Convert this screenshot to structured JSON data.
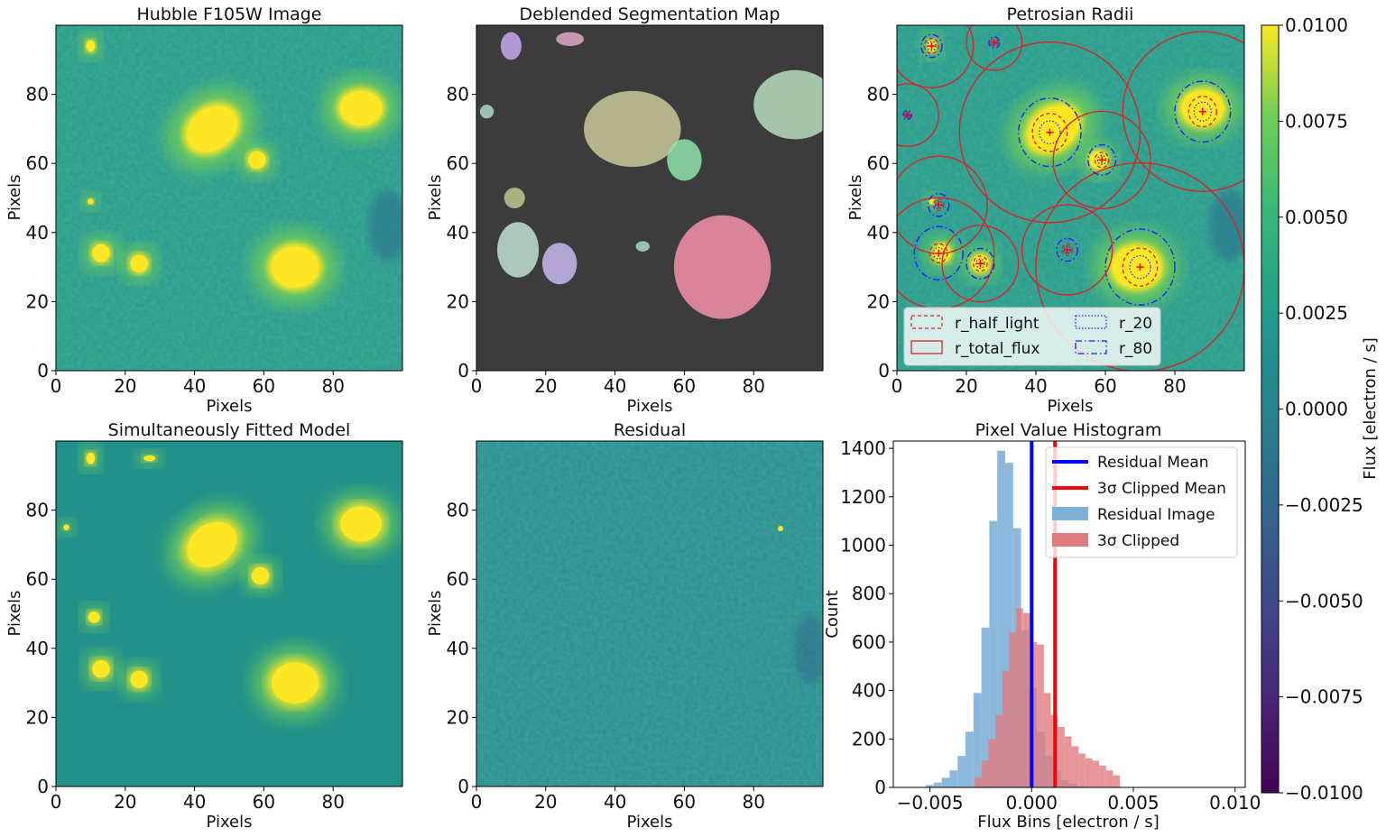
{
  "colors": {
    "viridis_dark": "#440154",
    "viridis_mid": "#21918c",
    "viridis_yellow": "#fde725",
    "seg_background": "#3c3c3c",
    "contour_red": "#d62728",
    "contour_blue": "#1f1fff",
    "hist_blue": "#7fb0d8",
    "hist_red": "#e07b80",
    "line_blue": "#0000ff",
    "line_red": "#ff0000"
  },
  "chart_data": [
    {
      "id": "hubble",
      "type": "heatmap",
      "title": "Hubble F105W Image",
      "xlabel": "Pixels",
      "ylabel": "Pixels",
      "xlim": [
        0,
        100
      ],
      "ylim": [
        0,
        100
      ],
      "xticks": [
        0,
        20,
        40,
        60,
        80
      ],
      "yticks": [
        0,
        20,
        40,
        60,
        80
      ],
      "sources": [
        {
          "x": 45,
          "y": 70,
          "rx": 9,
          "ry": 7,
          "angle": -35
        },
        {
          "x": 88,
          "y": 76,
          "rx": 7,
          "ry": 6,
          "angle": 0
        },
        {
          "x": 69,
          "y": 30,
          "rx": 8,
          "ry": 7,
          "angle": 0
        },
        {
          "x": 58,
          "y": 61,
          "rx": 3,
          "ry": 3,
          "angle": 0
        },
        {
          "x": 13,
          "y": 34,
          "rx": 3,
          "ry": 3,
          "angle": 0
        },
        {
          "x": 24,
          "y": 31,
          "rx": 3,
          "ry": 3,
          "angle": 0
        },
        {
          "x": 10,
          "y": 94,
          "rx": 1.5,
          "ry": 2,
          "angle": 0
        },
        {
          "x": 10,
          "y": 49,
          "rx": 1,
          "ry": 1,
          "angle": 0
        }
      ]
    },
    {
      "id": "segmap",
      "type": "heatmap",
      "title": "Deblended Segmentation Map",
      "xlabel": "Pixels",
      "ylabel": "Pixels",
      "xlim": [
        0,
        100
      ],
      "ylim": [
        0,
        100
      ],
      "xticks": [
        0,
        20,
        40,
        60,
        80
      ],
      "yticks": [
        0,
        20,
        40,
        60,
        80
      ],
      "segments": [
        {
          "x": 45,
          "y": 70,
          "rx": 14,
          "ry": 11,
          "color": "#c8c89a"
        },
        {
          "x": 71,
          "y": 30,
          "rx": 14,
          "ry": 15,
          "color": "#f590a8"
        },
        {
          "x": 92,
          "y": 77,
          "rx": 12,
          "ry": 10,
          "color": "#b8dcc0"
        },
        {
          "x": 60,
          "y": 61,
          "rx": 5,
          "ry": 6,
          "color": "#8ee0a8"
        },
        {
          "x": 12,
          "y": 35,
          "rx": 6,
          "ry": 8,
          "color": "#c0e0d0"
        },
        {
          "x": 24,
          "y": 31,
          "rx": 5,
          "ry": 6,
          "color": "#c8b8f0"
        },
        {
          "x": 10,
          "y": 94,
          "rx": 3,
          "ry": 4,
          "color": "#c8a8f0"
        },
        {
          "x": 27,
          "y": 96,
          "rx": 4,
          "ry": 2,
          "color": "#e0a8c8"
        },
        {
          "x": 11,
          "y": 50,
          "rx": 3,
          "ry": 3,
          "color": "#b8c890"
        },
        {
          "x": 3,
          "y": 75,
          "rx": 2,
          "ry": 2,
          "color": "#a8d8c8"
        },
        {
          "x": 48,
          "y": 36,
          "rx": 2,
          "ry": 1.5,
          "color": "#a8d8c8"
        }
      ]
    },
    {
      "id": "petrosian",
      "type": "heatmap",
      "title": "Petrosian Radii",
      "xlabel": "Pixels",
      "ylabel": "Pixels",
      "xlim": [
        0,
        100
      ],
      "ylim": [
        0,
        100
      ],
      "xticks": [
        0,
        20,
        40,
        60,
        80
      ],
      "yticks": [
        0,
        20,
        40,
        60,
        80
      ],
      "legend": {
        "loc": "lower-left",
        "ncol": 2,
        "entries": [
          {
            "label": "r_half_light",
            "style": "dashed",
            "color": "#d62728"
          },
          {
            "label": "r_total_flux",
            "style": "solid",
            "color": "#d62728"
          },
          {
            "label": "r_20",
            "style": "dotted",
            "color": "#1f1fff"
          },
          {
            "label": "r_80",
            "style": "dashdot",
            "color": "#1f1fff"
          }
        ]
      },
      "apertures": [
        {
          "x": 44,
          "y": 69,
          "r_half": 5,
          "r_20": 3,
          "r_80": 9,
          "r_total": 26
        },
        {
          "x": 88,
          "y": 75,
          "r_half": 4,
          "r_20": 2.5,
          "r_80": 8,
          "r_total": 23
        },
        {
          "x": 70,
          "y": 30,
          "r_half": 5,
          "r_20": 3,
          "r_80": 10,
          "r_total": 30
        },
        {
          "x": 59,
          "y": 61,
          "r_half": 2,
          "r_20": 1.2,
          "r_80": 4,
          "r_total": 14
        },
        {
          "x": 12,
          "y": 34,
          "r_half": 2.5,
          "r_20": 1.5,
          "r_80": 7,
          "r_total": 16
        },
        {
          "x": 24,
          "y": 31,
          "r_half": 2,
          "r_20": 1.2,
          "r_80": 4,
          "r_total": 11
        },
        {
          "x": 10,
          "y": 94,
          "r_half": 2,
          "r_20": 1.2,
          "r_80": 3,
          "r_total": 12
        },
        {
          "x": 12,
          "y": 48,
          "r_half": 1.5,
          "r_20": 1,
          "r_80": 3,
          "r_total": 14
        },
        {
          "x": 49,
          "y": 35,
          "r_half": 1.5,
          "r_20": 1,
          "r_80": 3,
          "r_total": 13
        },
        {
          "x": 28,
          "y": 95,
          "r_half": 1,
          "r_20": 0.6,
          "r_80": 1.5,
          "r_total": 8
        },
        {
          "x": 3,
          "y": 74,
          "r_half": 0.8,
          "r_20": 0.5,
          "r_80": 1.2,
          "r_total": 9
        }
      ]
    },
    {
      "id": "model",
      "type": "heatmap",
      "title": "Simultaneously Fitted Model",
      "xlabel": "Pixels",
      "ylabel": "Pixels",
      "xlim": [
        0,
        100
      ],
      "ylim": [
        0,
        100
      ],
      "xticks": [
        0,
        20,
        40,
        60,
        80
      ],
      "yticks": [
        0,
        20,
        40,
        60,
        80
      ],
      "sources": [
        {
          "x": 45,
          "y": 70,
          "rx": 9,
          "ry": 7,
          "angle": -35
        },
        {
          "x": 88,
          "y": 76,
          "rx": 7,
          "ry": 6,
          "angle": 0
        },
        {
          "x": 69,
          "y": 30,
          "rx": 8,
          "ry": 7,
          "angle": 0
        },
        {
          "x": 59,
          "y": 61,
          "rx": 3,
          "ry": 3,
          "angle": 0
        },
        {
          "x": 13,
          "y": 34,
          "rx": 3,
          "ry": 3,
          "angle": 0
        },
        {
          "x": 24,
          "y": 31,
          "rx": 3,
          "ry": 3,
          "angle": 0
        },
        {
          "x": 10,
          "y": 95,
          "rx": 1.5,
          "ry": 2,
          "angle": 0
        },
        {
          "x": 27,
          "y": 95,
          "rx": 2,
          "ry": 1,
          "angle": 0
        },
        {
          "x": 11,
          "y": 49,
          "rx": 2,
          "ry": 2,
          "angle": 0
        },
        {
          "x": 3,
          "y": 75,
          "rx": 1,
          "ry": 1,
          "angle": 0
        }
      ]
    },
    {
      "id": "residual",
      "type": "heatmap",
      "title": "Residual",
      "xlabel": "Pixels",
      "ylabel": "Pixels",
      "xlim": [
        0,
        100
      ],
      "ylim": [
        0,
        100
      ],
      "xticks": [
        0,
        20,
        40,
        60,
        80
      ],
      "yticks": [
        0,
        20,
        40,
        60,
        80
      ]
    },
    {
      "id": "histogram",
      "type": "bar",
      "title": "Pixel Value Histogram",
      "xlabel": "Flux Bins [electron / s]",
      "ylabel": "Count",
      "xlim": [
        -0.0068,
        0.0105
      ],
      "ylim": [
        0,
        1430
      ],
      "xticks": [
        -0.005,
        0.0,
        0.005,
        0.01
      ],
      "xtick_labels": [
        "−0.005",
        "0.000",
        "0.005",
        "0.010"
      ],
      "yticks": [
        0,
        200,
        400,
        600,
        800,
        1000,
        1200,
        1400
      ],
      "legend": {
        "loc": "upper-right",
        "entries": [
          {
            "label": "Residual Mean",
            "kind": "line",
            "color": "#0000ff"
          },
          {
            "label": "3σ Clipped Mean",
            "kind": "line",
            "color": "#ff0000"
          },
          {
            "label": "Residual Image",
            "kind": "patch",
            "color": "#7fb0d8"
          },
          {
            "label": "3σ Clipped",
            "kind": "patch",
            "color": "#e07b80"
          }
        ]
      },
      "residual_mean": 0.0,
      "clipped_mean": 0.00115,
      "series": [
        {
          "name": "Residual Image",
          "bin_start": -0.0052,
          "bin_width": 0.00039,
          "values": [
            10,
            20,
            40,
            70,
            130,
            230,
            390,
            660,
            1100,
            1390,
            1340,
            1070,
            650,
            410,
            230,
            130,
            70,
            30,
            15,
            5,
            2
          ]
        },
        {
          "name": "3σ Clipped",
          "bin_start": -0.0028,
          "bin_width": 0.00034,
          "values": [
            40,
            110,
            200,
            300,
            480,
            640,
            740,
            720,
            600,
            590,
            390,
            300,
            250,
            210,
            170,
            140,
            120,
            110,
            90,
            70,
            50
          ]
        }
      ]
    },
    {
      "id": "colorbar",
      "type": "heatmap",
      "label": "Flux [electron / s]",
      "range": [
        -0.01,
        0.01
      ],
      "ticks": [
        0.01,
        0.0075,
        0.005,
        0.0025,
        0.0,
        -0.0025,
        -0.005,
        -0.0075,
        -0.01
      ],
      "tick_labels": [
        "0.0100",
        "0.0075",
        "0.0050",
        "0.0025",
        "0.0000",
        "−0.0025",
        "−0.0050",
        "−0.0075",
        "−0.0100"
      ]
    }
  ]
}
